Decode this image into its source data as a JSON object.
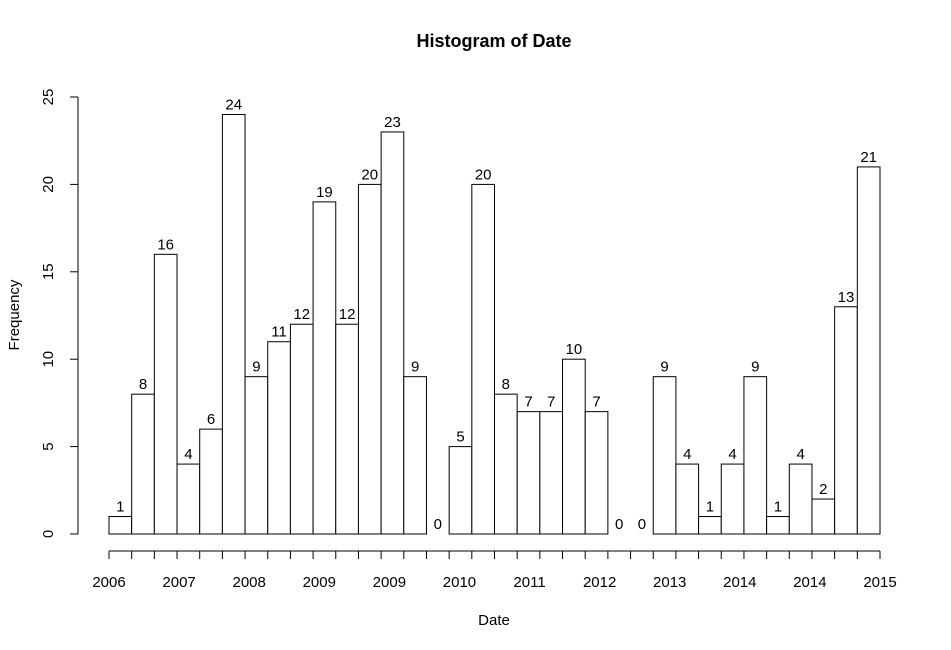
{
  "chart_data": {
    "type": "bar",
    "title": "Histogram of Date",
    "xlabel": "Date",
    "ylabel": "Frequency",
    "ylim": [
      0,
      25
    ],
    "y_ticks": [
      0,
      5,
      10,
      15,
      20,
      25
    ],
    "x_tick_labels": [
      "2006",
      "2007",
      "2008",
      "2009",
      "2009",
      "2010",
      "2011",
      "2012",
      "2013",
      "2014",
      "2014",
      "2015"
    ],
    "values": [
      1,
      8,
      16,
      4,
      6,
      24,
      9,
      11,
      12,
      19,
      12,
      20,
      23,
      9,
      0,
      5,
      20,
      8,
      7,
      7,
      10,
      7,
      0,
      0,
      9,
      4,
      1,
      4,
      9,
      1,
      4,
      2,
      13,
      21
    ],
    "grid": false,
    "bar_fill": "#ffffff",
    "bar_stroke": "#000000"
  }
}
